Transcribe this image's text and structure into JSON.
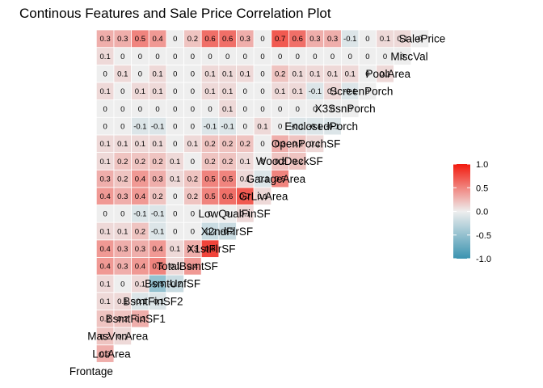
{
  "chart_data": {
    "type": "heatmap",
    "title": "Continous Features and Sale Price Correlation Plot",
    "variables": [
      "Frontage",
      "LotArea",
      "MasVnrArea",
      "BsmtFinSF1",
      "BsmtFinSF2",
      "BsmtUnfSF",
      "TotalBsmtSF",
      "X1stFlrSF",
      "X2ndFlrSF",
      "LowQualFinSF",
      "GrLivArea",
      "GarageArea",
      "WoodDeckSF",
      "OpenPorchSF",
      "EnclosedPorch",
      "X3SsnPorch",
      "ScreenPorch",
      "PoolArea",
      "MiscVal",
      "SalePrice"
    ],
    "lower_triangle": [
      [],
      [
        0.3
      ],
      [
        0.2,
        0.1
      ],
      [
        0.2,
        0.2,
        0.3
      ],
      [
        0.1,
        0.1,
        -0.1,
        -0.1
      ],
      [
        0.1,
        0.0,
        0.1,
        -0.5,
        -0.2
      ],
      [
        0.4,
        0.3,
        0.4,
        0.5,
        0.1,
        0.4
      ],
      [
        0.4,
        0.3,
        0.3,
        0.4,
        0.1,
        0.3,
        0.8
      ],
      [
        0.1,
        0.1,
        0.2,
        -0.1,
        0.0,
        0.0,
        -0.2,
        -0.2
      ],
      [
        0.0,
        0.0,
        -0.1,
        -0.1,
        0.0,
        0.0,
        0.0,
        0.0,
        0.1
      ],
      [
        0.4,
        0.3,
        0.4,
        0.2,
        0.0,
        0.2,
        0.5,
        0.6,
        0.7,
        0.1
      ],
      [
        0.3,
        0.2,
        0.4,
        0.3,
        0.1,
        0.2,
        0.5,
        0.5,
        0.1,
        -0.1,
        0.5
      ],
      [
        0.1,
        0.2,
        0.2,
        0.2,
        0.1,
        0.0,
        0.2,
        0.2,
        0.1,
        0.0,
        0.2,
        0.2
      ],
      [
        0.1,
        0.1,
        0.1,
        0.1,
        0.0,
        0.1,
        0.2,
        0.2,
        0.2,
        0.0,
        0.3,
        0.2,
        0.1
      ],
      [
        0.0,
        0.0,
        -0.1,
        -0.1,
        0.0,
        0.0,
        -0.1,
        -0.1,
        0.0,
        0.1,
        0.0,
        -0.1,
        -0.1,
        -0.1
      ],
      [
        0.0,
        0.0,
        0.0,
        0.0,
        0.0,
        0.0,
        0.0,
        0.1,
        0.0,
        0.0,
        0.0,
        0.0,
        0.0,
        0.0,
        0.0
      ],
      [
        0.1,
        0.0,
        0.1,
        0.1,
        0.0,
        0.0,
        0.1,
        0.1,
        0.0,
        0.0,
        0.1,
        0.1,
        -0.1,
        0.1,
        -0.1,
        0.0
      ],
      [
        0.0,
        0.1,
        0.0,
        0.1,
        0.0,
        0.0,
        0.1,
        0.1,
        0.1,
        0.0,
        0.2,
        0.1,
        0.1,
        0.1,
        0.1,
        0.0,
        0.1
      ],
      [
        0.1,
        0.0,
        0.0,
        0.0,
        0.0,
        0.0,
        0.0,
        0.0,
        0.0,
        0.0,
        0.0,
        0.0,
        0.0,
        0.0,
        0.0,
        0.0,
        0.0,
        0.0
      ],
      [
        0.3,
        0.3,
        0.5,
        0.4,
        0.0,
        0.2,
        0.6,
        0.6,
        0.3,
        0.0,
        0.7,
        0.6,
        0.3,
        0.3,
        -0.1,
        0.0,
        0.1,
        0.1,
        0.0
      ]
    ],
    "legend": {
      "position": "right",
      "ticks": [
        "1.0",
        "0.5",
        "0.0",
        "-0.5",
        "-1.0"
      ],
      "range": [
        -1,
        1
      ]
    },
    "colors": {
      "low": "#3a93b0",
      "mid": "#eeeeee",
      "high": "#f21a0e"
    },
    "grid": false
  }
}
